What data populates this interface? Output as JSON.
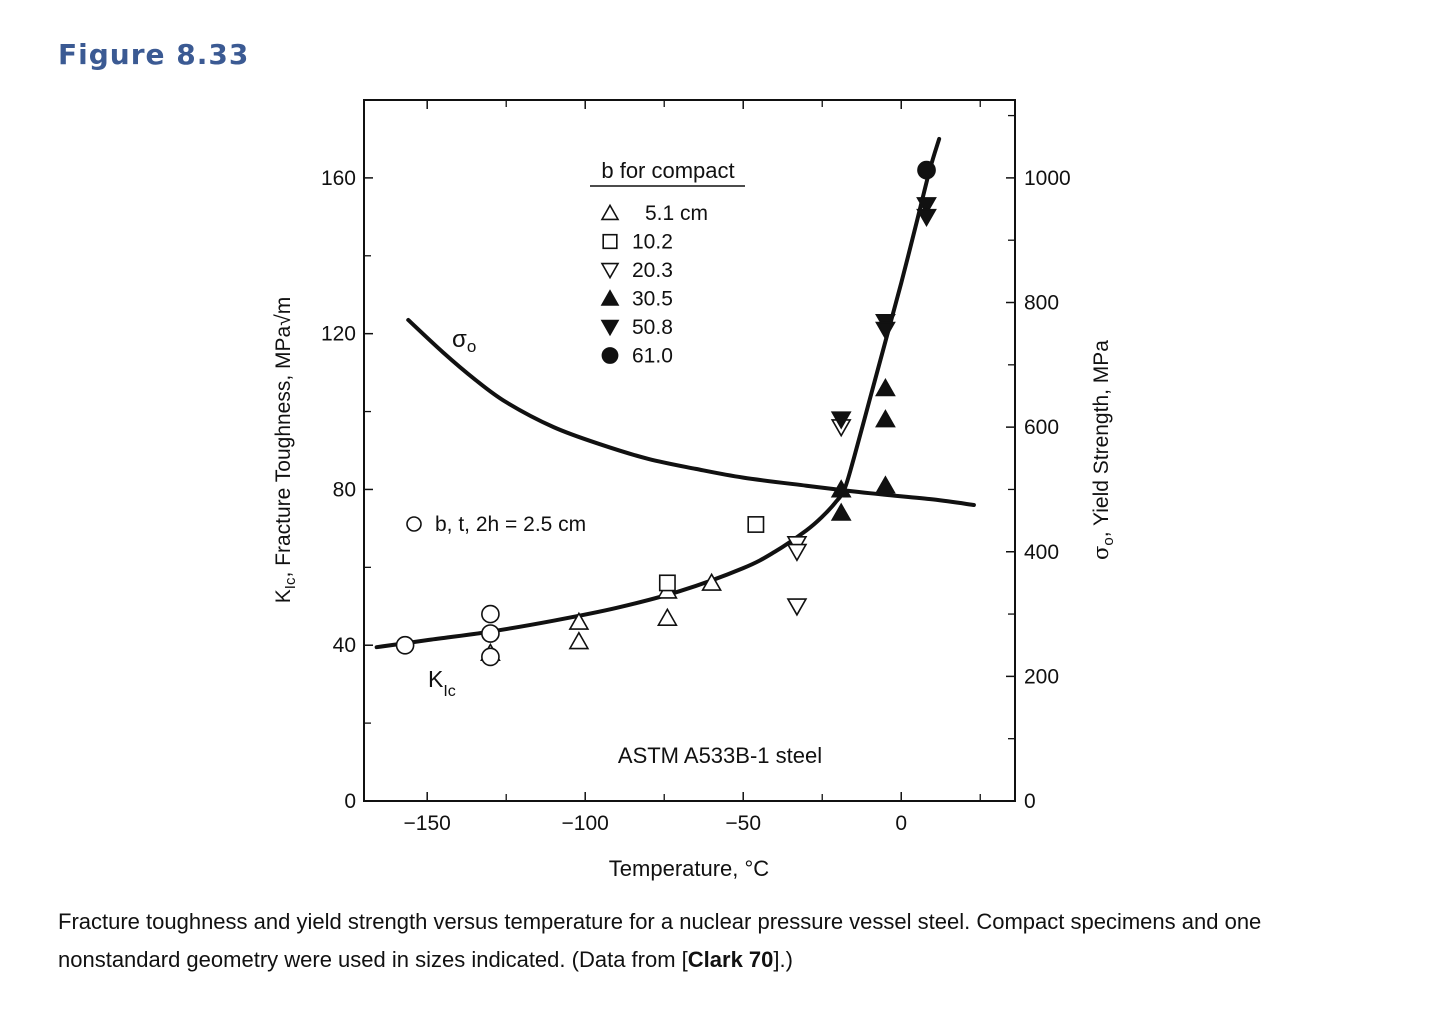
{
  "figure": {
    "label": "Figure 8.33"
  },
  "caption": {
    "pre": "Fracture toughness and yield strength versus temperature for a nuclear pressure vessel steel. Compact specimens and one nonstandard geometry were used in sizes indicated. (Data from [",
    "ref": "Clark 70",
    "post": "].)"
  },
  "chart_data": {
    "type": "scatter",
    "annotation": "ASTM A533B-1 steel",
    "xlabel": "Temperature, °C",
    "ylabel": "K",
    "ylabel_sub": "Ic",
    "ylabel_rest": ", Fracture Toughness, MPa√m",
    "y2label": "σ",
    "y2label_sub": "o",
    "y2label_rest": ", Yield Strength, MPa",
    "xlim": [
      -170,
      36
    ],
    "ylim": [
      0,
      180
    ],
    "y2lim": [
      0,
      1125
    ],
    "x_ticks": [
      -150,
      -100,
      -50,
      0
    ],
    "x_tick_labels": [
      "−150",
      "−100",
      "−50",
      "0"
    ],
    "y_ticks": [
      0,
      40,
      80,
      120,
      160
    ],
    "y_tick_labels": [
      "0",
      "40",
      "80",
      "120",
      "160"
    ],
    "y2_ticks": [
      0,
      200,
      400,
      600,
      800,
      1000
    ],
    "y2_tick_labels": [
      "0",
      "200",
      "400",
      "600",
      "800",
      "1000"
    ],
    "legend_title": "b for compact",
    "legend_position": "top-center",
    "series": [
      {
        "name": "5.1 cm",
        "marker": "triangle-open",
        "points": [
          [
            -130,
            38
          ],
          [
            -102,
            46
          ],
          [
            -102,
            41
          ],
          [
            -74,
            54
          ],
          [
            -74,
            47
          ],
          [
            -60,
            56
          ]
        ]
      },
      {
        "name": "10.2",
        "marker": "square-open",
        "points": [
          [
            -74,
            56
          ],
          [
            -46,
            71
          ]
        ]
      },
      {
        "name": "20.3",
        "marker": "triangle-down-open",
        "points": [
          [
            -33,
            66
          ],
          [
            -33,
            64
          ],
          [
            -33,
            50
          ],
          [
            -19,
            96
          ]
        ]
      },
      {
        "name": "30.5",
        "marker": "triangle-filled",
        "points": [
          [
            -19,
            80
          ],
          [
            -19,
            74
          ],
          [
            -5,
            106
          ],
          [
            -5,
            98
          ],
          [
            -5,
            81
          ]
        ]
      },
      {
        "name": "50.8",
        "marker": "triangle-down-filled",
        "points": [
          [
            -19,
            98
          ],
          [
            -5,
            123
          ],
          [
            -5,
            121
          ],
          [
            8,
            153
          ],
          [
            8,
            150
          ]
        ]
      },
      {
        "name": "61.0",
        "marker": "circle-filled",
        "points": [
          [
            8,
            162
          ]
        ]
      },
      {
        "name": "b, t, 2h = 2.5 cm",
        "marker": "circle-open",
        "points": [
          [
            -157,
            40
          ],
          [
            -130,
            48
          ],
          [
            -130,
            43
          ],
          [
            -130,
            37
          ]
        ]
      }
    ],
    "curves": [
      {
        "name": "K",
        "name_sub": "Ic",
        "axis": "left",
        "points": [
          [
            -166,
            39.5
          ],
          [
            -150,
            41.3
          ],
          [
            -130,
            43.5
          ],
          [
            -110,
            46.3
          ],
          [
            -90,
            49.6
          ],
          [
            -70,
            53.9
          ],
          [
            -50,
            59.8
          ],
          [
            -40,
            64
          ],
          [
            -30,
            69.5
          ],
          [
            -25,
            73
          ],
          [
            -21,
            76.5
          ],
          [
            -18,
            80
          ],
          [
            -15,
            88
          ],
          [
            -10,
            103
          ],
          [
            -5,
            118
          ],
          [
            0,
            133
          ],
          [
            5,
            149
          ],
          [
            9,
            162
          ],
          [
            12,
            170
          ]
        ]
      },
      {
        "name": "σ",
        "name_sub": "o",
        "axis": "right",
        "points": [
          [
            -156,
            772
          ],
          [
            -145,
            720
          ],
          [
            -135,
            677
          ],
          [
            -125,
            640
          ],
          [
            -110,
            600
          ],
          [
            -95,
            572
          ],
          [
            -80,
            549
          ],
          [
            -65,
            533
          ],
          [
            -50,
            519
          ],
          [
            -30,
            506
          ],
          [
            -10,
            494
          ],
          [
            10,
            484
          ],
          [
            23,
            475
          ]
        ]
      }
    ]
  }
}
